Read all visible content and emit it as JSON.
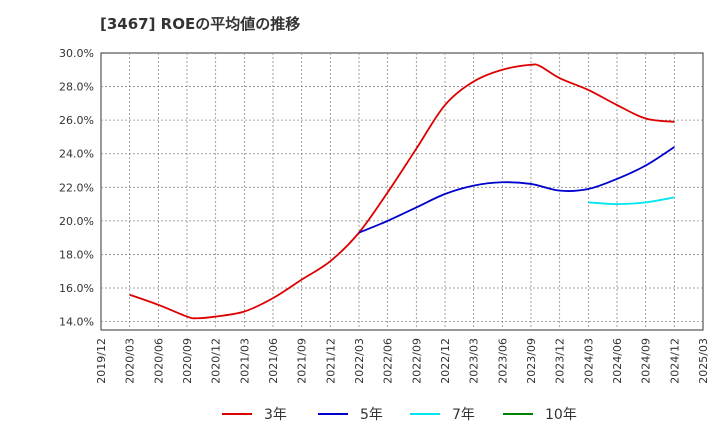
{
  "chart_data": {
    "type": "line",
    "title": "[3467]  ROEの平均値の推移",
    "xlabel": "",
    "ylabel": "",
    "ylim": [
      13.5,
      30.0
    ],
    "y_ticks": [
      "14.0%",
      "16.0%",
      "18.0%",
      "20.0%",
      "22.0%",
      "24.0%",
      "26.0%",
      "28.0%",
      "30.0%"
    ],
    "y_tick_values": [
      14,
      16,
      18,
      20,
      22,
      24,
      26,
      28,
      30
    ],
    "x_ticks": [
      "2019/12",
      "2020/03",
      "2020/06",
      "2020/09",
      "2020/12",
      "2021/03",
      "2021/06",
      "2021/09",
      "2021/12",
      "2022/03",
      "2022/06",
      "2022/09",
      "2022/12",
      "2023/03",
      "2023/06",
      "2023/09",
      "2023/12",
      "2024/03",
      "2024/06",
      "2024/09",
      "2024/12",
      "2025/03"
    ],
    "grid": true,
    "legend_position": "bottom",
    "series": [
      {
        "name": "3年",
        "color": "#dd0000",
        "x": [
          "2020/03",
          "2020/06",
          "2020/09",
          "2020/10",
          "2020/12",
          "2021/03",
          "2021/06",
          "2021/09",
          "2021/12",
          "2022/03",
          "2022/06",
          "2022/09",
          "2022/12",
          "2023/03",
          "2023/06",
          "2023/09",
          "2023/10",
          "2023/12",
          "2024/03",
          "2024/06",
          "2024/09",
          "2024/12"
        ],
        "values": [
          15.6,
          15.0,
          14.3,
          14.2,
          14.3,
          14.6,
          15.4,
          16.5,
          17.6,
          19.3,
          21.7,
          24.3,
          26.9,
          28.3,
          29.0,
          29.3,
          29.2,
          28.5,
          27.8,
          26.9,
          26.1,
          25.9
        ]
      },
      {
        "name": "5年",
        "color": "#0000cc",
        "x": [
          "2022/03",
          "2022/06",
          "2022/09",
          "2022/12",
          "2023/03",
          "2023/06",
          "2023/09",
          "2023/12",
          "2024/03",
          "2024/06",
          "2024/09",
          "2024/12"
        ],
        "values": [
          19.3,
          20.0,
          20.8,
          21.6,
          22.1,
          22.3,
          22.2,
          21.8,
          21.9,
          22.5,
          23.3,
          24.4
        ]
      },
      {
        "name": "7年",
        "color": "#00e5ee",
        "x": [
          "2024/03",
          "2024/06",
          "2024/09",
          "2024/12"
        ],
        "values": [
          21.1,
          21.0,
          21.1,
          21.4
        ]
      },
      {
        "name": "10年",
        "color": "#008000",
        "x": [],
        "values": []
      }
    ]
  }
}
